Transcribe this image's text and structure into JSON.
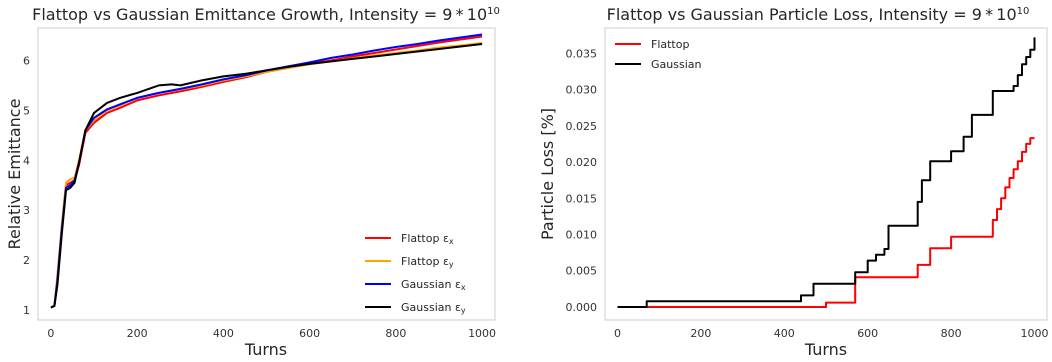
{
  "chart_data": [
    {
      "type": "line",
      "title": "Flattop vs Gaussian Emittance Growth, Intensity = 9 * 10",
      "title_exponent": "10",
      "xlabel": "Turns",
      "ylabel": "Relative Emittance",
      "xlim": [
        -30,
        1030
      ],
      "ylim": [
        0.8,
        6.65
      ],
      "x_ticks": [
        0,
        200,
        400,
        600,
        800,
        1000
      ],
      "y_ticks": [
        1,
        2,
        3,
        4,
        5,
        6
      ],
      "grid": false,
      "legend_position": "lower-right",
      "series": [
        {
          "name": "Flattop εx",
          "base": "Flattop ε",
          "sub": "x",
          "color": "#ff0000",
          "x": [
            0,
            8,
            15,
            25,
            35,
            45,
            55,
            65,
            80,
            100,
            130,
            160,
            200,
            250,
            300,
            350,
            400,
            450,
            500,
            550,
            600,
            650,
            700,
            750,
            800,
            850,
            900,
            950,
            1000
          ],
          "y": [
            1.05,
            1.08,
            1.6,
            2.6,
            3.5,
            3.55,
            3.6,
            3.9,
            4.55,
            4.75,
            4.95,
            5.05,
            5.2,
            5.3,
            5.38,
            5.47,
            5.57,
            5.66,
            5.77,
            5.85,
            5.93,
            6.0,
            6.08,
            6.15,
            6.22,
            6.29,
            6.36,
            6.42,
            6.48
          ]
        },
        {
          "name": "Flattop εy",
          "base": "Flattop ε",
          "sub": "y",
          "color": "#ffa500",
          "x": [
            0,
            8,
            15,
            25,
            35,
            45,
            55,
            65,
            80,
            100,
            130,
            160,
            200,
            250,
            300,
            350,
            400,
            450,
            500,
            550,
            600,
            650,
            700,
            750,
            800,
            850,
            900,
            950,
            1000
          ],
          "y": [
            1.05,
            1.1,
            1.7,
            2.7,
            3.55,
            3.62,
            3.65,
            4.0,
            4.6,
            4.8,
            5.0,
            5.1,
            5.25,
            5.35,
            5.42,
            5.5,
            5.6,
            5.68,
            5.77,
            5.85,
            5.92,
            5.98,
            6.04,
            6.1,
            6.15,
            6.2,
            6.26,
            6.3,
            6.35
          ]
        },
        {
          "name": "Gaussian εx",
          "base": "Gaussian ε",
          "sub": "x",
          "color": "#0000ff",
          "x": [
            0,
            8,
            15,
            25,
            35,
            45,
            55,
            65,
            80,
            100,
            130,
            160,
            200,
            250,
            300,
            350,
            400,
            450,
            500,
            550,
            600,
            650,
            700,
            750,
            800,
            850,
            900,
            950,
            1000
          ],
          "y": [
            1.05,
            1.08,
            1.6,
            2.6,
            3.45,
            3.5,
            3.6,
            3.95,
            4.6,
            4.85,
            5.02,
            5.12,
            5.25,
            5.35,
            5.43,
            5.52,
            5.62,
            5.7,
            5.8,
            5.88,
            5.96,
            6.05,
            6.12,
            6.2,
            6.27,
            6.33,
            6.4,
            6.46,
            6.52
          ]
        },
        {
          "name": "Gaussian εy",
          "base": "Gaussian ε",
          "sub": "y",
          "color": "#000000",
          "x": [
            0,
            8,
            15,
            25,
            35,
            45,
            55,
            65,
            80,
            100,
            130,
            160,
            200,
            250,
            280,
            300,
            350,
            400,
            450,
            500,
            550,
            600,
            650,
            700,
            750,
            800,
            850,
            900,
            950,
            1000
          ],
          "y": [
            1.05,
            1.08,
            1.5,
            2.5,
            3.4,
            3.45,
            3.55,
            3.95,
            4.6,
            4.95,
            5.15,
            5.25,
            5.35,
            5.5,
            5.52,
            5.5,
            5.6,
            5.68,
            5.73,
            5.8,
            5.87,
            5.93,
            5.98,
            6.03,
            6.08,
            6.13,
            6.18,
            6.23,
            6.28,
            6.33
          ]
        }
      ]
    },
    {
      "type": "line",
      "title": "Flattop vs Gaussian Particle Loss, Intensity = 9 * 10",
      "title_exponent": "10",
      "xlabel": "Turns",
      "ylabel": "Particle Loss [%]",
      "xlim": [
        -30,
        1030
      ],
      "ylim": [
        -0.0018,
        0.0385
      ],
      "x_ticks": [
        0,
        200,
        400,
        600,
        800,
        1000
      ],
      "y_ticks": [
        0.0,
        0.005,
        0.01,
        0.015,
        0.02,
        0.025,
        0.03,
        0.035
      ],
      "y_tick_labels": [
        "0.000",
        "0.005",
        "0.010",
        "0.015",
        "0.020",
        "0.025",
        "0.030",
        "0.035"
      ],
      "grid": false,
      "legend_position": "top-left",
      "series": [
        {
          "name": "Flattop",
          "color": "#ff0000",
          "step": true,
          "x": [
            0,
            410,
            500,
            560,
            570,
            700,
            720,
            750,
            790,
            800,
            890,
            900,
            910,
            920,
            930,
            940,
            950,
            960,
            970,
            980,
            990,
            1000
          ],
          "y": [
            0,
            0,
            0.0006,
            0.0006,
            0.0041,
            0.0041,
            0.0058,
            0.0081,
            0.0081,
            0.0097,
            0.0097,
            0.012,
            0.0135,
            0.015,
            0.0165,
            0.0178,
            0.019,
            0.0201,
            0.0214,
            0.0225,
            0.0233,
            0.0233
          ]
        },
        {
          "name": "Gaussian",
          "color": "#000000",
          "step": true,
          "x": [
            0,
            70,
            420,
            440,
            470,
            560,
            570,
            600,
            620,
            640,
            650,
            700,
            720,
            730,
            750,
            770,
            800,
            830,
            850,
            880,
            900,
            930,
            950,
            960,
            970,
            980,
            990,
            1000
          ],
          "y": [
            0,
            0.0008,
            0.0008,
            0.0016,
            0.0032,
            0.0032,
            0.0048,
            0.0064,
            0.0072,
            0.008,
            0.0112,
            0.0112,
            0.0145,
            0.0175,
            0.0201,
            0.0201,
            0.0215,
            0.0235,
            0.0265,
            0.0265,
            0.0298,
            0.0298,
            0.0305,
            0.032,
            0.0335,
            0.0345,
            0.0355,
            0.0372
          ]
        }
      ]
    }
  ]
}
